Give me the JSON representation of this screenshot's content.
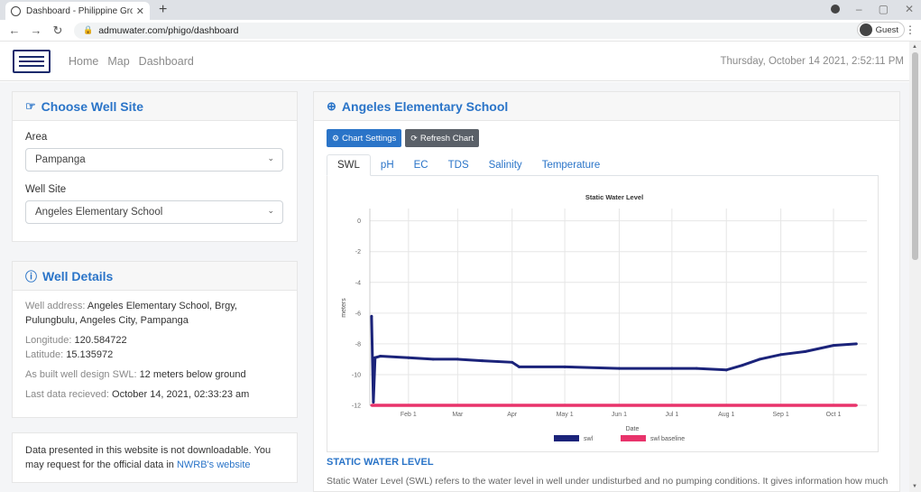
{
  "browser": {
    "tab_title": "Dashboard - Philippine Groundw",
    "url": "admuwater.com/phigo/dashboard",
    "profile": "Guest"
  },
  "nav": {
    "links": [
      "Home",
      "Map",
      "Dashboard"
    ],
    "datetime": "Thursday, October 14 2021, 2:52:11 PM"
  },
  "choose_site": {
    "title": "Choose Well Site",
    "area_label": "Area",
    "area_value": "Pampanga",
    "site_label": "Well Site",
    "site_value": "Angeles Elementary School"
  },
  "well_details": {
    "title": "Well Details",
    "address_label": "Well address:",
    "address_value": "Angeles Elementary School, Brgy, Pulungbulu, Angeles City, Pampanga",
    "longitude_label": "Longitude:",
    "longitude_value": "120.584722",
    "latitude_label": "Latitude:",
    "latitude_value": "15.135972",
    "design_label": "As built well design SWL:",
    "design_value": "12 meters below ground",
    "received_label": "Last data recieved:",
    "received_value": "October 14, 2021, 02:33:23 am"
  },
  "notice": {
    "text": "Data presented in this website is not downloadable. You may request for the official data in",
    "link": "NWRB's website"
  },
  "chart_panel": {
    "title": "Angeles Elementary School",
    "settings_button": "Chart Settings",
    "refresh_button": "Refresh Chart",
    "tabs": [
      "SWL",
      "pH",
      "EC",
      "TDS",
      "Salinity",
      "Temperature"
    ],
    "active_tab": "SWL"
  },
  "description": {
    "heading": "STATIC WATER LEVEL",
    "text": "Static Water Level (SWL) refers to the water level in well under undisturbed and no pumping conditions. It gives information how much"
  },
  "colors": {
    "accent": "#2a74c8",
    "swl": "#1b237a",
    "baseline": "#e8336b"
  },
  "chart_data": {
    "type": "line",
    "title": "Static Water Level",
    "xlabel": "Date",
    "ylabel": "meters",
    "ylim": [
      -12,
      0.8
    ],
    "yticks": [
      0,
      -2,
      -4,
      -6,
      -8,
      -10,
      -12
    ],
    "xlim": [
      "2021-01-10",
      "2021-10-20"
    ],
    "xticks": [
      {
        "date": "2021-02-01",
        "label": "Feb 1"
      },
      {
        "date": "2021-03-01",
        "label": "Mar"
      },
      {
        "date": "2021-04-01",
        "label": "Apr"
      },
      {
        "date": "2021-05-01",
        "label": "May 1"
      },
      {
        "date": "2021-06-01",
        "label": "Jun 1"
      },
      {
        "date": "2021-07-01",
        "label": "Jul 1"
      },
      {
        "date": "2021-08-01",
        "label": "Aug 1"
      },
      {
        "date": "2021-09-01",
        "label": "Sep 1"
      },
      {
        "date": "2021-10-01",
        "label": "Oct 1"
      }
    ],
    "grid": true,
    "legend": "bottom",
    "series": [
      {
        "name": "swl",
        "color": "#1b237a",
        "points": [
          [
            "2021-01-11",
            -6.2
          ],
          [
            "2021-01-12",
            -11.8
          ],
          [
            "2021-01-13",
            -8.9
          ],
          [
            "2021-01-16",
            -8.8
          ],
          [
            "2021-02-01",
            -8.9
          ],
          [
            "2021-02-15",
            -9.0
          ],
          [
            "2021-03-01",
            -9.0
          ],
          [
            "2021-03-15",
            -9.1
          ],
          [
            "2021-04-01",
            -9.2
          ],
          [
            "2021-04-05",
            -9.5
          ],
          [
            "2021-05-01",
            -9.5
          ],
          [
            "2021-06-01",
            -9.6
          ],
          [
            "2021-07-01",
            -9.6
          ],
          [
            "2021-07-15",
            -9.6
          ],
          [
            "2021-08-01",
            -9.7
          ],
          [
            "2021-08-10",
            -9.4
          ],
          [
            "2021-08-20",
            -9.0
          ],
          [
            "2021-09-01",
            -8.7
          ],
          [
            "2021-09-15",
            -8.5
          ],
          [
            "2021-10-01",
            -8.1
          ],
          [
            "2021-10-14",
            -8.0
          ]
        ]
      },
      {
        "name": "swl baseline",
        "color": "#e8336b",
        "points": [
          [
            "2021-01-11",
            -12
          ],
          [
            "2021-10-14",
            -12
          ]
        ]
      }
    ]
  }
}
